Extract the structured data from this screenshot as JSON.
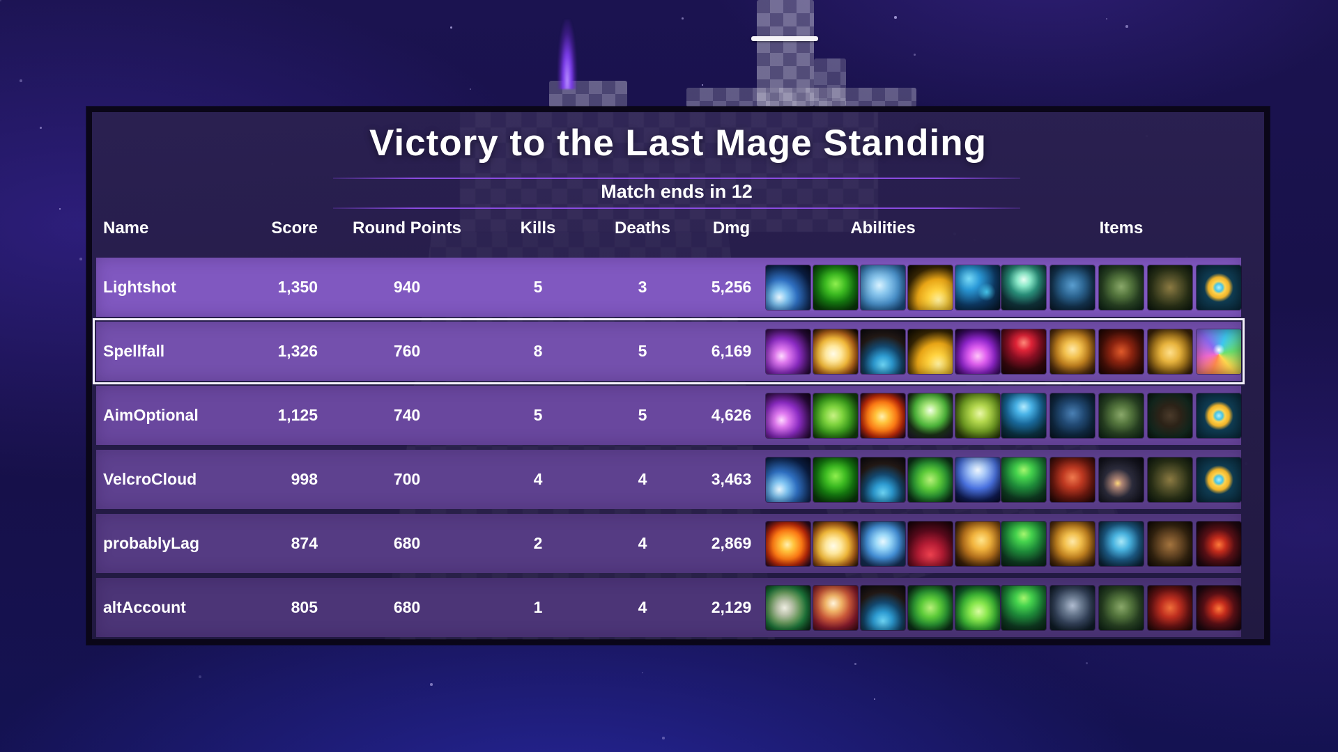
{
  "title": "Victory to the Last Mage Standing",
  "subtitle": "Match ends in 12",
  "columns": {
    "name": "Name",
    "score": "Score",
    "round_points": "Round Points",
    "kills": "Kills",
    "deaths": "Deaths",
    "dmg": "Dmg",
    "abilities": "Abilities",
    "items": "Items"
  },
  "rows": [
    {
      "name": "Lightshot",
      "score": "1,350",
      "round_points": "940",
      "kills": "5",
      "deaths": "3",
      "dmg": "5,256",
      "selected": false,
      "row_color": "#8058c0",
      "abilities": [
        "frost-bolt",
        "nature-drop",
        "tidal-wave",
        "golden-burst",
        "flame-drips"
      ],
      "items": [
        "crystal-staff",
        "blue-mage-robe",
        "green-wrap",
        "emerald-boots",
        "gold-blue-ring"
      ]
    },
    {
      "name": "Spellfall",
      "score": "1,326",
      "round_points": "760",
      "kills": "8",
      "deaths": "5",
      "dmg": "6,169",
      "selected": true,
      "row_color": "#7450ad",
      "abilities": [
        "arcane-slash",
        "white-fireball",
        "frost-claw",
        "golden-burst",
        "arcane-flame"
      ],
      "items": [
        "ruby-scepter",
        "gold-armor",
        "ember-gloves",
        "gold-boots",
        "prism-pendant"
      ]
    },
    {
      "name": "AimOptional",
      "score": "1,125",
      "round_points": "740",
      "kills": "5",
      "deaths": "5",
      "dmg": "4,626",
      "selected": false,
      "row_color": "#69479e",
      "abilities": [
        "arcane-slash",
        "gale-burst",
        "fire-orb",
        "sprout",
        "acid-splash"
      ],
      "items": [
        "tide-staff",
        "navy-mage-robe",
        "green-wrap",
        "shadow-boots",
        "gold-blue-ring"
      ]
    },
    {
      "name": "VelcroCloud",
      "score": "998",
      "round_points": "700",
      "kills": "4",
      "deaths": "4",
      "dmg": "3,463",
      "selected": false,
      "row_color": "#5e418f",
      "abilities": [
        "frost-bolt",
        "nature-drop",
        "frost-claw",
        "heal-cross",
        "radiant-beam"
      ],
      "items": [
        "emerald-wand",
        "red-robe",
        "spark-gloves",
        "emerald-boots",
        "gold-blue-ring"
      ]
    },
    {
      "name": "probablyLag",
      "score": "874",
      "round_points": "680",
      "kills": "2",
      "deaths": "4",
      "dmg": "2,869",
      "selected": false,
      "row_color": "#553b83",
      "abilities": [
        "fire-orb",
        "white-fireball",
        "ice-shards",
        "red-flames",
        "gold-meteor"
      ],
      "items": [
        "emerald-wand",
        "gold-armor",
        "frost-bracers",
        "trail-boots",
        "ember-pendant"
      ]
    },
    {
      "name": "altAccount",
      "score": "805",
      "round_points": "680",
      "kills": "1",
      "deaths": "4",
      "dmg": "2,129",
      "selected": false,
      "row_color": "#4c3577",
      "abilities": [
        "crystal-growth",
        "phoenix-dive",
        "frost-claw",
        "heal-cross",
        "verdant-flame"
      ],
      "items": [
        "emerald-wand",
        "trim-cloak",
        "green-wrap",
        "crimson-boots",
        "ember-pendant"
      ]
    }
  ],
  "colors": {
    "divider": "#8a4be0",
    "selected_border": "#f4f1fa",
    "panel_border": "#0a0618",
    "row_text": "#ffffff"
  },
  "icon_art": {
    "frost-bolt": "radial-gradient(circle at 30% 72%, #e8f7ff 0%, #7fc4f2 18%, #2f6fc0 40%, #0b1f46 75%, #060d22 100%)",
    "nature-drop": "radial-gradient(circle at 50% 42%, #8ef04e 0%, #3dbb22 30%, #157a10 55%, #0a3a0a 85%)",
    "tidal-wave": "radial-gradient(circle at 42% 45%, #d8f2ff 0%, #8cc8ee 25%, #4a92cc 55%, #1d5084 85%)",
    "golden-burst": "radial-gradient(circle at 68% 78%, #fff1a0 0%, #ffd23e 22%, #e8a516 45%, #3a2804 72%, #0d0a02 100%)",
    "flame-drips": "radial-gradient(circle at 70% 60%, rgba(80,220,255,.8) 0%, rgba(80,220,255,0) 22%), radial-gradient(circle at 30% 30%, #7adcf8 0%, #2b9ad8 25%, #0e3c68 60%, #071325 100%)",
    "arcane-slash": "radial-gradient(circle at 35% 60%, #ffd9ff 0%, #e07af0 18%, #8c2cc4 45%, #2a0a3c 80%, #120318 100%)",
    "white-fireball": "radial-gradient(circle at 45% 55%, #fffbe8 0%, #ffe9a0 22%, #f2b93a 45%, #b4641a 65%, #1c0e04 92%)",
    "frost-claw": "radial-gradient(circle at 50% 80%, #6fd8f8 0%, #2d9ad0 22%, #14486e 45%, #241a16 70%, #0c0a10 100%)",
    "arcane-flame": "radial-gradient(circle at 50% 60%, #ffc4f8 0%, #e060f0 25%, #9026cc 50%, #3c0a66 78%, #10041c 100%)",
    "gale-burst": "radial-gradient(circle at 45% 50%, #c8f284 0%, #7ed43e 28%, #3a9c1c 55%, #14420e 85%)",
    "fire-orb": "radial-gradient(circle at 48% 52%, #fff0b0 0%, #ffc43e 20%, #ff7a14 45%, #c42c0a 65%, #2c0a20 90%)",
    "sprout": "radial-gradient(circle at 50% 38%, #f4ffe8 0%, #a8e87a 20%, #4cb43a 45%, #1c3318 70%, #231536 100%)",
    "acid-splash": "radial-gradient(circle at 55% 45%, #eaf8a8 0%, #b4d84e 25%, #6f9c22 55%, #2c3c0c 85%)",
    "heal-cross": "radial-gradient(circle at 50% 50%, #b8f07a 0%, #5ecc3a 30%, #2a9432 55%, #0c3418 85%)",
    "radiant-beam": "radial-gradient(circle at 50% 28%, #f0f8ff 0%, #a8c8f8 20%, #4a72e0 48%, #101c54 80%, #080c2c 100%)",
    "ice-shards": "radial-gradient(circle at 50% 45%, #e8f8ff 0%, #9ad8f8 22%, #4490d8 50%, #163058 82%)",
    "red-flames": "radial-gradient(circle at 50% 75%, #f04250 0%, #b41c34 30%, #5c0a1c 60%, #1a040a 95%)",
    "gold-meteor": "radial-gradient(circle at 58% 42%, #ffe48a 0%, #f2b43e 25%, #b4701c 50%, #3c2008 80%, #1c0f06 100%)",
    "crystal-growth": "radial-gradient(circle at 42% 50%, #eeeee2 0%, #b8c0a8 22%, #6a9a5e 45%, #1f7a3c 65%, #0a2c16 95%)",
    "phoenix-dive": "radial-gradient(circle at 45% 40%, #fff4dc 0%, #f0b468 22%, #cc5a3a 45%, #8c1c2e 70%, #3c0a14 100%)",
    "verdant-flame": "radial-gradient(circle at 52% 58%, #d8fca0 0%, #8ae84e 25%, #3cb434 50%, #105c28 75%, #06281a 100%)",
    "crystal-staff": "radial-gradient(circle at 50% 32%, #e8fff4 0%, #8ae8c8 18%, #2a8f7a 40%, #10333a 70%, #0b2026 100%)",
    "blue-mage-robe": "radial-gradient(circle at 50% 45%, #5a9ed0 0%, #2c6490 35%, #143450 65%, #0a1a2c 100%)",
    "navy-mage-robe": "radial-gradient(circle at 50% 45%, #4a80b4 0%, #224a74 35%, #102a44 65%, #081624 100%)",
    "green-wrap": "radial-gradient(circle at 50% 48%, #8aa86a 0%, #55763e 30%, #2a4424 60%, #102818 95%)",
    "emerald-boots": "radial-gradient(circle at 50% 50%, #8c7a42 0%, #54512a 32%, #2c3318 60%, #0f1c10 95%)",
    "gold-blue-ring": "radial-gradient(circle at 50% 50%, #aef2ff 0%, #49c4e4 12%, #ffd34e 20%, #f0b42a 33%, #0f3d54 46%, #0a2a3c 100%)",
    "ruby-scepter": "radial-gradient(circle at 50% 30%, #ff8a7a 0%, #e02438 20%, #8c1024 42%, #36080e 72%, #1c0508 100%)",
    "gold-armor": "radial-gradient(circle at 50% 45%, #ffe9a8 0%, #f2c04e 25%, #c0801f 50%, #5c340e 78%, #241204 100%)",
    "ember-gloves": "radial-gradient(circle at 50% 50%, #e05a2a 0%, #8c2410 35%, #481008 65%, #1c0504 100%)",
    "gold-boots": "radial-gradient(circle at 50% 52%, #ffdf8a 0%, #e8b43e 30%, #a4761c 55%, #3c240a 85%)",
    "prism-pendant": "radial-gradient(circle at 50% 46%, #ffffff 0%, rgba(255,255,255,0) 18%), conic-gradient(from 20deg at 50% 55%, #3ec8f0, #6ae06e, #ffd84e, #ff8a4e, #f06ad0, #8a6af0, #3ec8f0)",
    "tide-staff": "radial-gradient(circle at 50% 30%, #b4ecff 0%, #4ab4e8 20%, #1a6a9c 45%, #0c3344 75%, #081f2c 100%)",
    "shadow-boots": "radial-gradient(circle at 50% 50%, #4a3a2a 0%, #2c2318 35%, #142a20 70%, #0a1a12 100%)",
    "emerald-wand": "radial-gradient(circle at 50% 28%, #a8f870 0%, #46d44e 20%, #1f8c3a 45%, #0f3c22 75%, #0a2416 100%)",
    "red-robe": "radial-gradient(circle at 50% 45%, #f07a4e 0%, #c03a22 30%, #701a10 60%, #240806 95%)",
    "spark-gloves": "radial-gradient(circle at 42% 58%, #ffd87a 0%, rgba(255,200,90,.5) 12%, #2c2c3c 40%, #14141f 75%, #0a0a12 100%)",
    "frost-bracers": "radial-gradient(circle at 50% 45%, #a8e8f8 0%, #4ab4e0 25%, #1c5a84 55%, #0c2438 90%)",
    "trail-boots": "radial-gradient(circle at 50% 52%, #a4743e 0%, #6b4a26 32%, #342410 62%, #140c06 95%)",
    "ember-pendant": "radial-gradient(circle at 50% 52%, #ff7a3a 0%, #c42c1c 22%, #5c1016 48%, #220810 80%, #140510 100%)",
    "trim-cloak": "radial-gradient(circle at 50% 45%, #b0bcd0 0%, #68788e 28%, #34425a 55%, #101e2a 85%)",
    "crimson-boots": "radial-gradient(circle at 50% 50%, #f0703a 0%, #c03020 30%, #6c1414 60%, #240808 95%)"
  }
}
